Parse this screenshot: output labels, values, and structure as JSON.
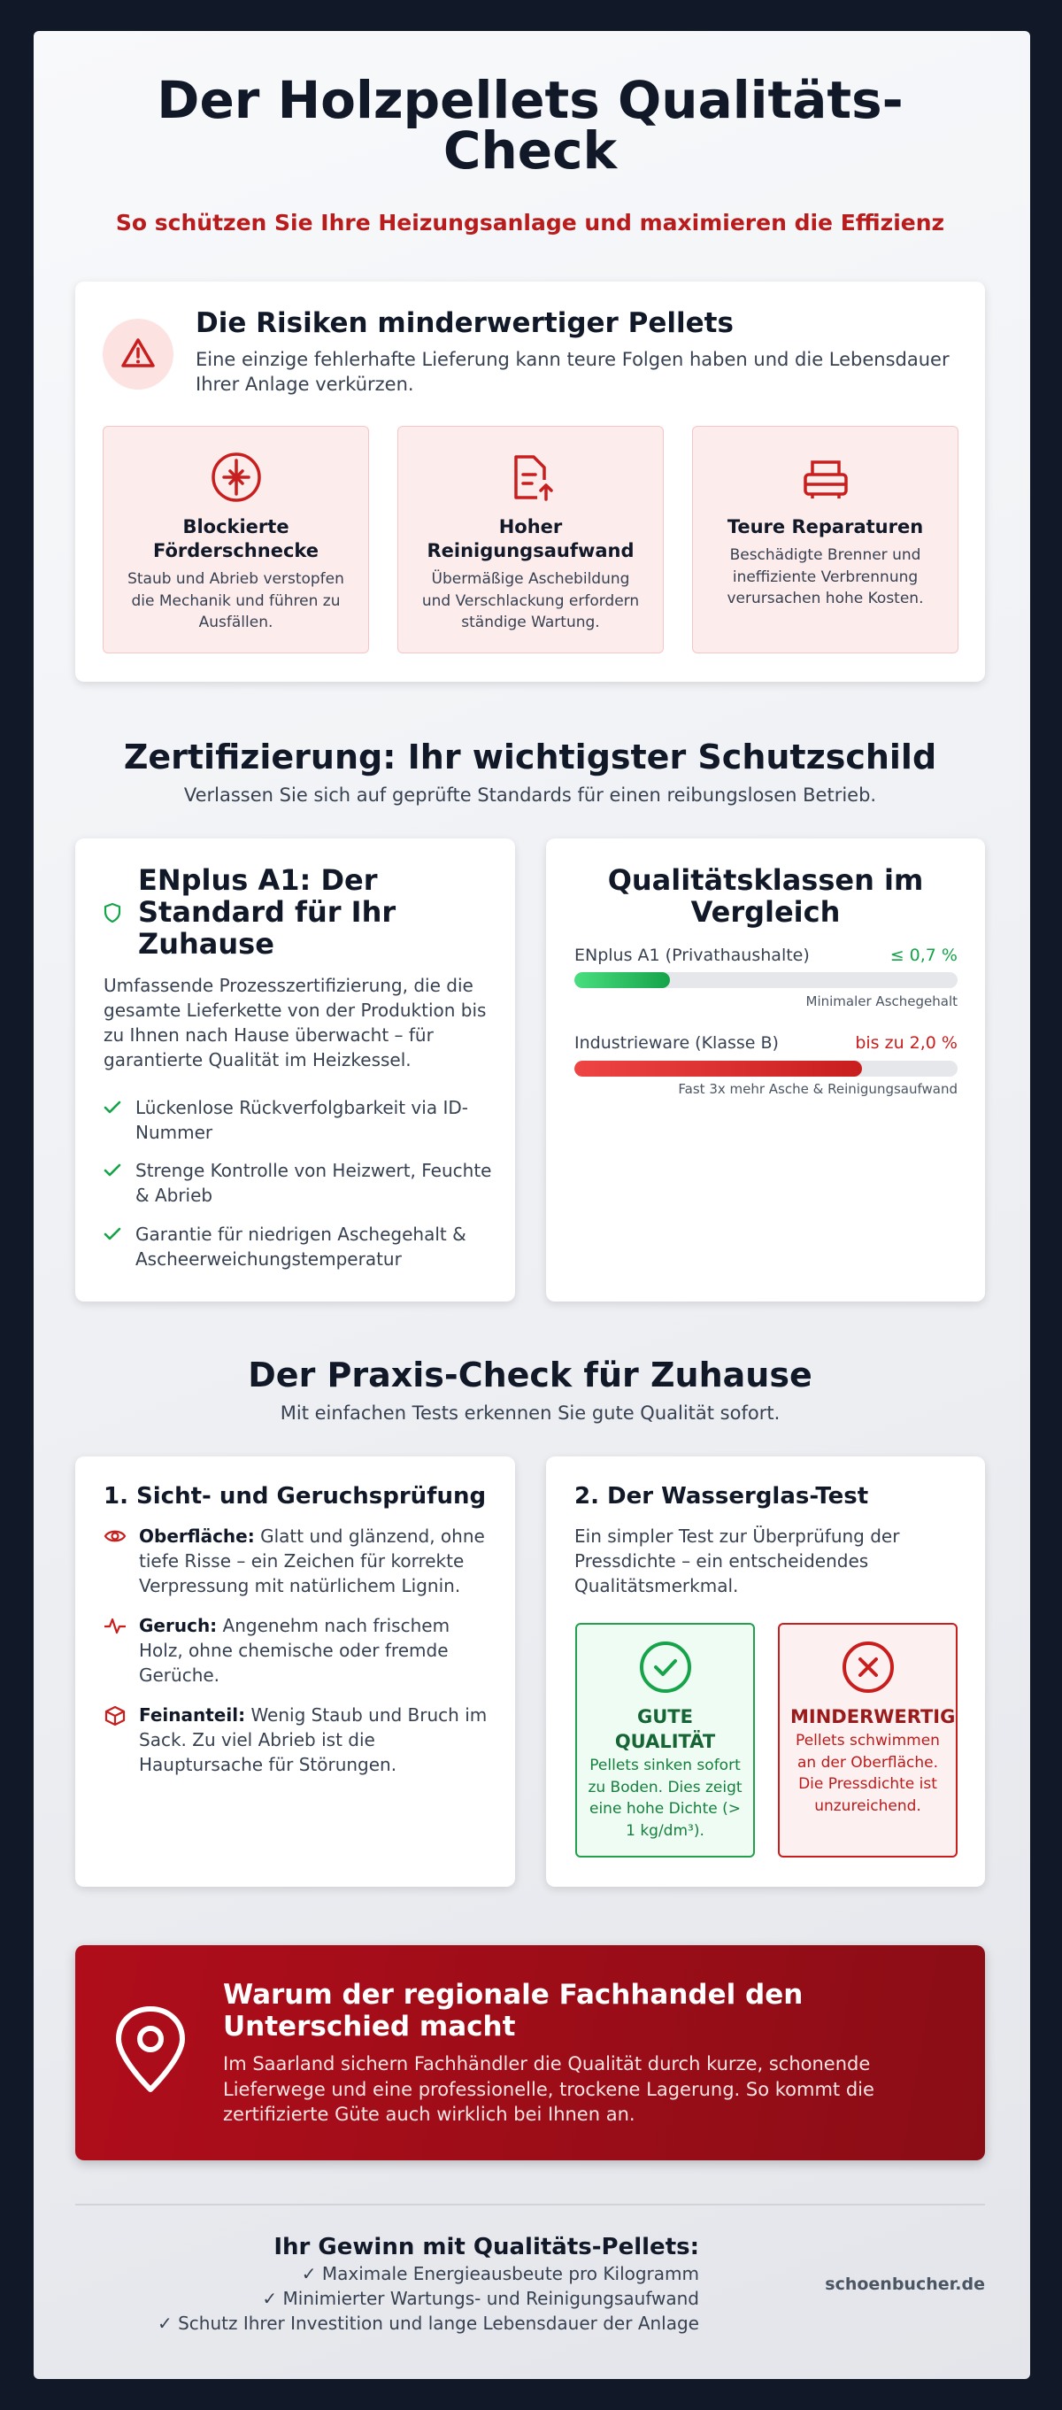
{
  "header": {
    "title": "Der Holzpellets Qualitäts-Check",
    "subtitle": "So schützen Sie Ihre Heizungsanlage und maximieren die Effizienz"
  },
  "risks": {
    "title": "Die Risiken minderwertiger Pellets",
    "description": "Eine einzige fehlerhafte Lieferung kann teure Folgen haben und die Lebensdauer Ihrer Anlage verkürzen.",
    "items": [
      {
        "title": "Blockierte Förderschnecke",
        "text": "Staub und Abrieb verstopfen die Mechanik und führen zu Ausfällen."
      },
      {
        "title": "Hoher Reinigungsaufwand",
        "text": "Übermäßige Aschebildung und Verschlackung erfordern ständige Wartung."
      },
      {
        "title": "Teure Reparaturen",
        "text": "Beschädigte Brenner und ineffiziente Verbrennung verursachen hohe Kosten."
      }
    ]
  },
  "certification": {
    "title": "Zertifizierung: Ihr wichtigster Schutzschild",
    "subtitle": "Verlassen Sie sich auf geprüfte Standards für einen reibungslosen Betrieb.",
    "enplus": {
      "title": "ENplus A1: Der Standard für Ihr Zuhause",
      "description": "Umfassende Prozesszertifizierung, die die gesamte Lieferkette von der Produktion bis zu Ihnen nach Hause überwacht – für garantierte Qualität im Heizkessel.",
      "checks": [
        "Lückenlose Rückverfolgbarkeit via ID-Nummer",
        "Strenge Kontrolle von Heizwert, Feuchte & Abrieb",
        "Garantie für niedrigen Aschegehalt & Ascheerweichungstemperatur"
      ]
    },
    "comparison": {
      "title": "Qualitätsklassen im Vergleich",
      "rows": [
        {
          "label": "ENplus A1 (Privathaushalte)",
          "value_label": "≤ 0,7 %",
          "caption": "Minimaler Aschegehalt"
        },
        {
          "label": "Industrieware (Klasse B)",
          "value_label": "bis zu 2,0 %",
          "caption": "Fast 3x mehr Asche & Reinigungsaufwand"
        }
      ]
    }
  },
  "practice": {
    "title": "Der Praxis-Check für Zuhause",
    "subtitle": "Mit einfachen Tests erkennen Sie gute Qualität sofort.",
    "visual": {
      "title": "1. Sicht- und Geruchsprüfung",
      "items": [
        {
          "label": "Oberfläche:",
          "text": "Glatt und glänzend, ohne tiefe Risse – ein Zeichen für korrekte Verpressung mit natürlichem Lignin."
        },
        {
          "label": "Geruch:",
          "text": "Angenehm nach frischem Holz, ohne chemische oder fremde Gerüche."
        },
        {
          "label": "Feinanteil:",
          "text": "Wenig Staub und Bruch im Sack. Zu viel Abrieb ist die Hauptursache für Störungen."
        }
      ]
    },
    "water": {
      "title": "2. Der Wasserglas-Test",
      "description": "Ein simpler Test zur Überprüfung der Pressdichte – ein entscheidendes Qualitätsmerkmal.",
      "results": [
        {
          "title": "GUTE QUALITÄT",
          "text": "Pellets sinken sofort zu Boden. Dies zeigt eine hohe Dichte (> 1 kg/dm³)."
        },
        {
          "title": "MINDERWERTIG",
          "text": "Pellets schwimmen an der Oberfläche. Die Pressdichte ist unzureichend."
        }
      ]
    }
  },
  "regional": {
    "title": "Warum der regionale Fachhandel den Unterschied macht",
    "text": "Im Saarland sichern Fachhändler die Qualität durch kurze, schonende Lieferwege und eine professionelle, trockene Lagerung. So kommt die zertifizierte Güte auch wirklich bei Ihnen an."
  },
  "footer": {
    "title": "Ihr Gewinn mit Qualitäts-Pellets:",
    "benefits": [
      "✓ Maximale Energieausbeute pro Kilogramm",
      "✓ Minimierter Wartungs- und Reinigungsaufwand",
      "✓ Schutz Ihrer Investition und lange Lebensdauer der Anlage"
    ],
    "site": "schoenbucher.de"
  }
}
